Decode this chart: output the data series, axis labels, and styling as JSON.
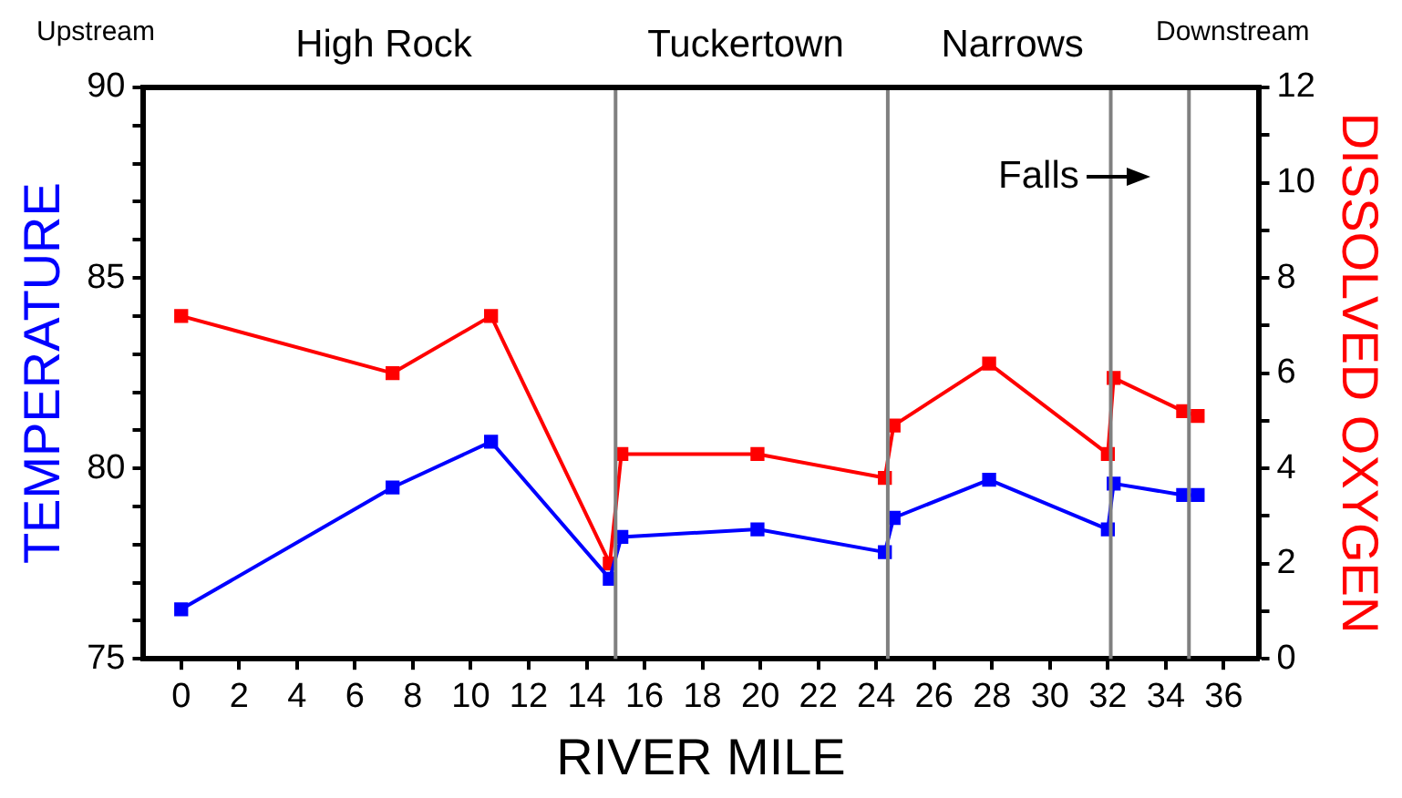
{
  "chart_data": {
    "type": "line",
    "xlabel": "RIVER MILE",
    "ylabel": "TEMPERATURE",
    "y2label": "DISSOLVED OXYGEN",
    "x": [
      0,
      7.3,
      10.7,
      14.8,
      15.2,
      19.9,
      24.3,
      24.6,
      27.9,
      32.0,
      32.2,
      34.6,
      35.1
    ],
    "series": [
      {
        "color": "#0000ff",
        "values": [
          76.3,
          79.5,
          80.7,
          77.1,
          78.2,
          78.4,
          77.8,
          78.7,
          79.7,
          78.4,
          79.6,
          79.3,
          79.3
        ]
      },
      {
        "color": "#ff0000",
        "axis": "y2",
        "values": [
          7.2,
          6.0,
          7.2,
          2.0,
          4.3,
          4.3,
          3.8,
          4.9,
          6.2,
          4.3,
          5.9,
          5.2,
          5.1
        ]
      }
    ],
    "xlim": [
      -1.3,
      37.2
    ],
    "xticks": [
      0,
      2,
      4,
      6,
      8,
      10,
      12,
      14,
      16,
      18,
      20,
      22,
      24,
      26,
      28,
      30,
      32,
      34,
      36
    ],
    "ylim": [
      75,
      90
    ],
    "yticks": [
      75,
      {
        "value": 76,
        "label": null
      },
      {
        "value": 77,
        "label": null
      },
      {
        "value": 78,
        "label": null
      },
      {
        "value": 79,
        "label": null
      },
      80,
      {
        "value": 81,
        "label": null
      },
      {
        "value": 82,
        "label": null
      },
      {
        "value": 83,
        "label": null
      },
      {
        "value": 84,
        "label": null
      },
      85,
      {
        "value": 86,
        "label": null
      },
      {
        "value": 87,
        "label": null
      },
      {
        "value": 88,
        "label": null
      },
      {
        "value": 89,
        "label": null
      },
      90
    ],
    "y2lim": [
      0,
      12
    ],
    "y2ticks": [
      0,
      {
        "value": 1,
        "label": null
      },
      2,
      {
        "value": 3,
        "label": null
      },
      4,
      {
        "value": 5,
        "label": null
      },
      6,
      {
        "value": 7,
        "label": null
      },
      8,
      {
        "value": 9,
        "label": null
      },
      10,
      {
        "value": 11,
        "label": null
      },
      12
    ],
    "ref_lines": [
      {
        "axis": "x",
        "value": 15.0,
        "color": "#808080"
      },
      {
        "axis": "x",
        "value": 24.4,
        "color": "#808080"
      },
      {
        "axis": "x",
        "value": 32.1,
        "color": "#808080"
      },
      {
        "axis": "x",
        "value": 34.8,
        "color": "#808080"
      }
    ],
    "annotations": [
      "Upstream",
      "High Rock",
      "Tuckertown",
      "Narrows",
      "Downstream",
      "Falls"
    ],
    "grid": false,
    "legend": false,
    "marker": "square",
    "line_style": "solid"
  }
}
